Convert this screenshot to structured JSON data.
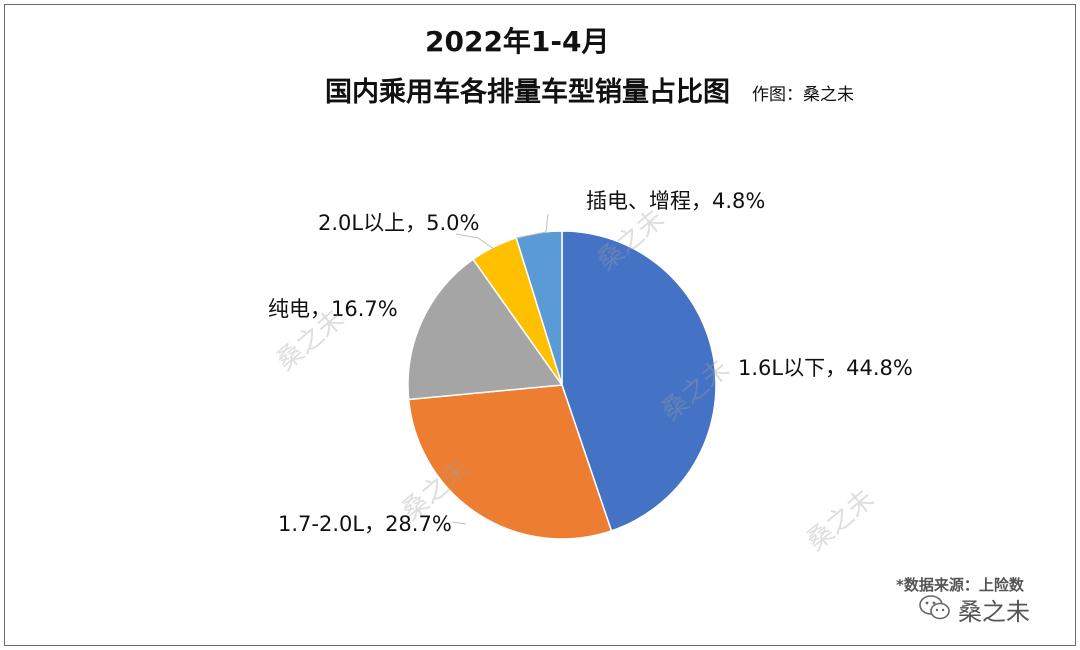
{
  "watermark": "桑之未",
  "source_note": "*数据来源：上险数",
  "wechat_name": "桑之未",
  "chart_data": {
    "type": "pie",
    "title": "2022年1-4月",
    "subtitle": "国内乘用车各排量车型销量占比图",
    "author": "作图：桑之未",
    "legend": "none",
    "slices": [
      {
        "label": "1.6L以下",
        "value": 44.8,
        "display": "1.6L以下，44.8%",
        "color": "#4472C4"
      },
      {
        "label": "1.7-2.0L",
        "value": 28.7,
        "display": "1.7-2.0L，28.7%",
        "color": "#ED7D31"
      },
      {
        "label": "纯电",
        "value": 16.7,
        "display": "纯电，16.7%",
        "color": "#A5A5A5"
      },
      {
        "label": "2.0L以上",
        "value": 5.0,
        "display": "2.0L以上，5.0%",
        "color": "#FFC000"
      },
      {
        "label": "插电、增程",
        "value": 4.8,
        "display": "插电、增程，4.8%",
        "color": "#5B9BD5"
      }
    ]
  }
}
